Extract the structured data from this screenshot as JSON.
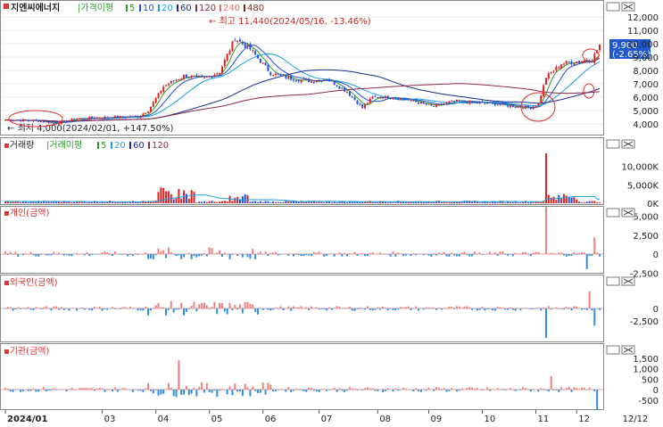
{
  "chart_data": [
    {
      "type": "candlestick",
      "panel": "price",
      "title": "지엔씨에너지",
      "ma_label": "가격이평",
      "ma_periods": [
        "5",
        "10",
        "20",
        "60",
        "120",
        "240",
        "480"
      ],
      "ma_colors": [
        "#2a9a2a",
        "#1f4ed8",
        "#1aa0e0",
        "#1b2a8f",
        "#8b2a4a",
        "#e07070",
        "#7a2a2a"
      ],
      "yticks": [
        "12,000",
        "11,000",
        "10,000",
        "9,000",
        "8,000",
        "7,000",
        "6,000",
        "5,000",
        "4,000"
      ],
      "ylim": [
        3600,
        12600
      ],
      "high_annotation": "최고 11,440(2024/05/16, -13.46%)",
      "low_annotation": "최저 4,000(2024/02/01, +147.50%)",
      "current_price": "9,900",
      "current_change": "(-2.65%)",
      "months": [
        "2024/01",
        "03",
        "04",
        "05",
        "06",
        "07",
        "08",
        "09",
        "10",
        "11",
        "12"
      ],
      "end_label": "12/12",
      "anchors": [
        {
          "t": 0,
          "close": 4300
        },
        {
          "t": 12,
          "close": 4250
        },
        {
          "t": 20,
          "close": 4050
        },
        {
          "t": 28,
          "close": 4400
        },
        {
          "t": 40,
          "close": 4500
        },
        {
          "t": 52,
          "close": 4550
        },
        {
          "t": 56,
          "close": 5000
        },
        {
          "t": 62,
          "close": 6800
        },
        {
          "t": 70,
          "close": 7600
        },
        {
          "t": 78,
          "close": 7400
        },
        {
          "t": 84,
          "close": 7900
        },
        {
          "t": 90,
          "close": 10400
        },
        {
          "t": 96,
          "close": 9600
        },
        {
          "t": 104,
          "close": 7800
        },
        {
          "t": 112,
          "close": 7400
        },
        {
          "t": 120,
          "close": 7200
        },
        {
          "t": 126,
          "close": 7400
        },
        {
          "t": 134,
          "close": 6400
        },
        {
          "t": 140,
          "close": 5200
        },
        {
          "t": 144,
          "close": 6000
        },
        {
          "t": 152,
          "close": 6000
        },
        {
          "t": 160,
          "close": 5700
        },
        {
          "t": 168,
          "close": 5300
        },
        {
          "t": 176,
          "close": 5700
        },
        {
          "t": 184,
          "close": 5600
        },
        {
          "t": 192,
          "close": 5500
        },
        {
          "t": 200,
          "close": 5300
        },
        {
          "t": 206,
          "close": 5200
        },
        {
          "t": 209,
          "close": 5500
        },
        {
          "t": 212,
          "close": 7500
        },
        {
          "t": 218,
          "close": 8500
        },
        {
          "t": 225,
          "close": 8700
        },
        {
          "t": 230,
          "close": 8800
        },
        {
          "t": 233,
          "close": 9900
        }
      ],
      "points": 234
    },
    {
      "type": "bar",
      "panel": "volume",
      "title": "거래량",
      "ma_label": "거래이평",
      "ma_periods": [
        "5",
        "20",
        "60",
        "120"
      ],
      "yticks": [
        "10,000K",
        "5,000K",
        "0K"
      ]
    },
    {
      "type": "bar",
      "panel": "individual",
      "title": "개인(금액)",
      "yticks": [
        "5,000",
        "2,500",
        "0",
        "-2,500"
      ]
    },
    {
      "type": "bar",
      "panel": "foreign",
      "title": "외국인(금액)",
      "yticks": [
        "0",
        "-2,500"
      ]
    },
    {
      "type": "bar",
      "panel": "institution",
      "title": "기관(금액)",
      "yticks": [
        "1,500",
        "1,000",
        "500",
        "0",
        "-500"
      ]
    }
  ]
}
